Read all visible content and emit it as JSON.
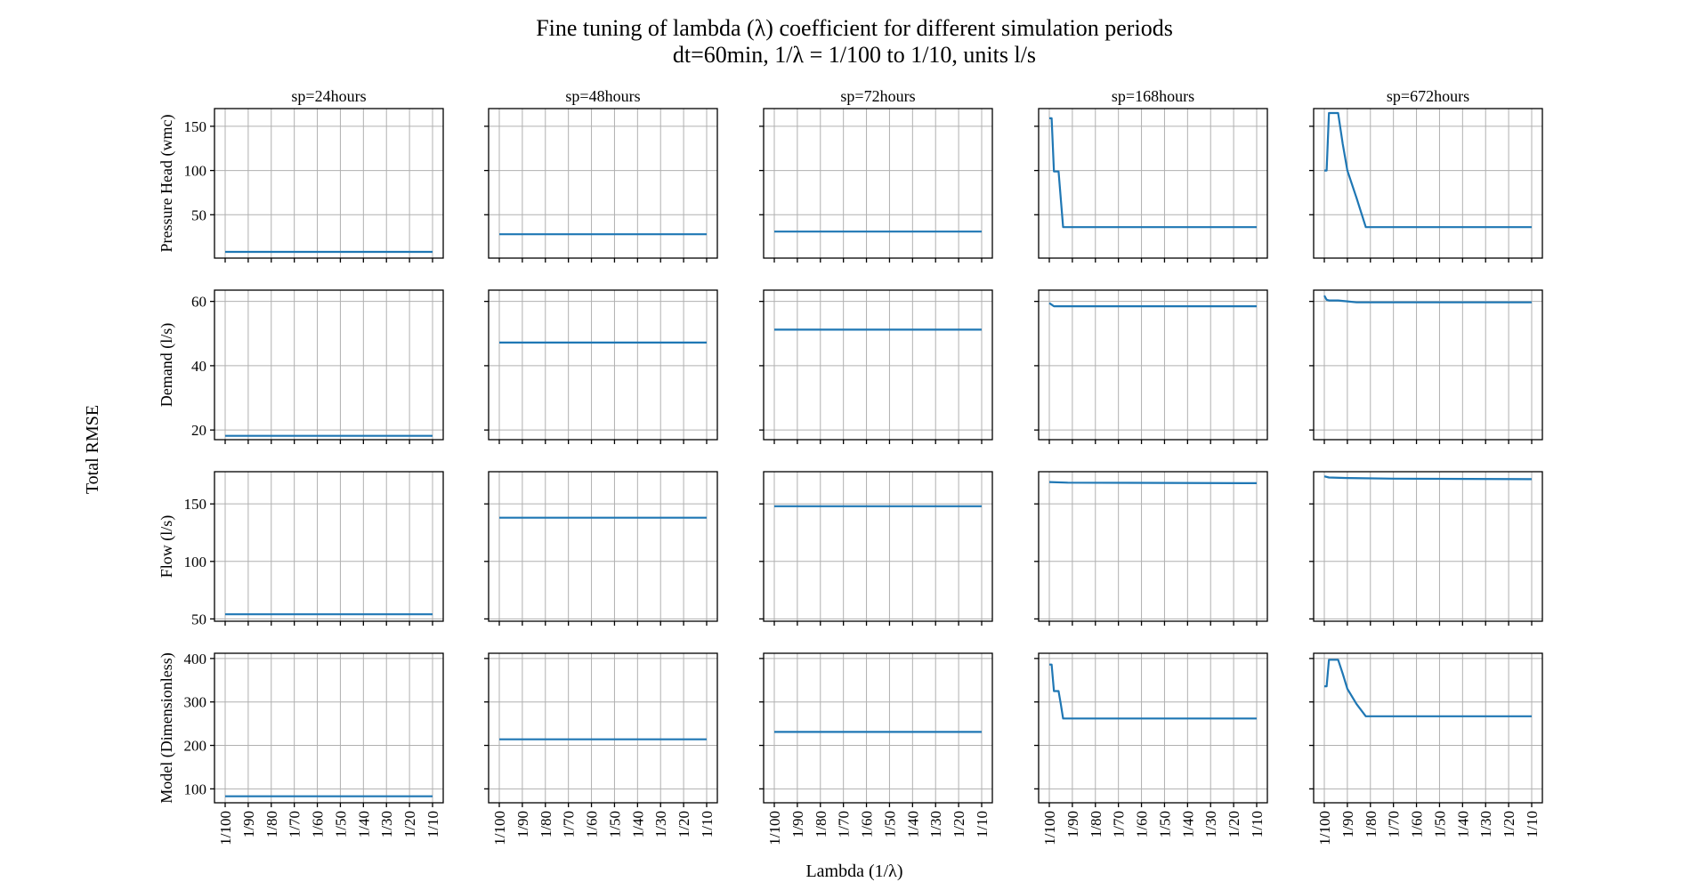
{
  "title_line1": "Fine tuning of lambda (λ) coefficient for different simulation periods",
  "title_line2": "dt=60min, 1/λ = 1/100 to 1/10, units l/s",
  "sup_ylabel": "Total RMSE",
  "sup_xlabel": "Lambda (1/λ)",
  "colors": {
    "series": "#1f77b4",
    "grid": "#b0b0b0"
  },
  "chart_data": {
    "type": "line",
    "x": [
      100,
      99,
      98,
      97,
      96,
      95,
      94,
      93,
      92,
      91,
      90,
      89,
      88,
      87,
      86,
      85,
      84,
      83,
      82,
      81,
      80,
      79,
      78,
      77,
      76,
      75,
      74,
      73,
      72,
      71,
      70,
      69,
      68,
      67,
      66,
      65,
      64,
      63,
      62,
      61,
      60,
      59,
      58,
      57,
      56,
      55,
      54,
      53,
      52,
      51,
      50,
      49,
      48,
      47,
      46,
      45,
      44,
      43,
      42,
      41,
      40,
      39,
      38,
      37,
      36,
      35,
      34,
      33,
      32,
      31,
      30,
      29,
      28,
      27,
      26,
      25,
      24,
      23,
      22,
      21,
      20,
      19,
      18,
      17,
      16,
      15,
      14,
      13,
      12,
      11,
      10
    ],
    "x_meaning": "lambda denominator d, where 1/λ = 1/d",
    "xlabel": "Lambda (1/λ)",
    "xticks": [
      "1/100",
      "1/90",
      "1/80",
      "1/70",
      "1/60",
      "1/50",
      "1/40",
      "1/30",
      "1/20",
      "1/10"
    ],
    "columns": [
      "sp=24hours",
      "sp=48hours",
      "sp=72hours",
      "sp=168hours",
      "sp=672hours"
    ],
    "rows": [
      {
        "ylabel": "Pressure Head (wmc)",
        "yticks": [
          50,
          100,
          150
        ],
        "ylim": [
          1,
          170
        ],
        "series": [
          {
            "column": "sp=24hours",
            "points": [
              [
                100,
                8
              ],
              [
                10,
                8
              ]
            ]
          },
          {
            "column": "sp=48hours",
            "points": [
              [
                100,
                28
              ],
              [
                10,
                28
              ]
            ]
          },
          {
            "column": "sp=72hours",
            "points": [
              [
                100,
                31
              ],
              [
                10,
                31
              ]
            ]
          },
          {
            "column": "sp=168hours",
            "points": [
              [
                100,
                159
              ],
              [
                99,
                159
              ],
              [
                98,
                99
              ],
              [
                97,
                99
              ],
              [
                96,
                99
              ],
              [
                95,
                68
              ],
              [
                94,
                36
              ],
              [
                10,
                36
              ]
            ]
          },
          {
            "column": "sp=672hours",
            "points": [
              [
                100,
                100
              ],
              [
                99,
                100
              ],
              [
                98,
                165
              ],
              [
                97,
                165
              ],
              [
                96,
                165
              ],
              [
                95,
                165
              ],
              [
                94,
                165
              ],
              [
                92,
                130
              ],
              [
                90,
                100
              ],
              [
                86,
                69
              ],
              [
                82,
                36
              ],
              [
                10,
                36
              ]
            ]
          }
        ]
      },
      {
        "ylabel": "Demand (l/s)",
        "yticks": [
          20,
          40,
          60
        ],
        "ylim": [
          17,
          63.5
        ],
        "series": [
          {
            "column": "sp=24hours",
            "points": [
              [
                100,
                18.2
              ],
              [
                10,
                18.2
              ]
            ]
          },
          {
            "column": "sp=48hours",
            "points": [
              [
                100,
                47.2
              ],
              [
                10,
                47.2
              ]
            ]
          },
          {
            "column": "sp=72hours",
            "points": [
              [
                100,
                51.2
              ],
              [
                10,
                51.2
              ]
            ]
          },
          {
            "column": "sp=168hours",
            "points": [
              [
                100,
                59.5
              ],
              [
                99,
                59
              ],
              [
                98,
                58.5
              ],
              [
                10,
                58.5
              ]
            ]
          },
          {
            "column": "sp=672hours",
            "points": [
              [
                100,
                61.8
              ],
              [
                99,
                60.5
              ],
              [
                98,
                60.3
              ],
              [
                94,
                60.3
              ],
              [
                90,
                60
              ],
              [
                86,
                59.7
              ],
              [
                10,
                59.7
              ]
            ]
          }
        ]
      },
      {
        "ylabel": "Flow (l/s)",
        "yticks": [
          50,
          100,
          150
        ],
        "ylim": [
          48,
          178
        ],
        "series": [
          {
            "column": "sp=24hours",
            "points": [
              [
                100,
                54
              ],
              [
                10,
                54
              ]
            ]
          },
          {
            "column": "sp=48hours",
            "points": [
              [
                100,
                138
              ],
              [
                10,
                138
              ]
            ]
          },
          {
            "column": "sp=72hours",
            "points": [
              [
                100,
                148
              ],
              [
                10,
                148
              ]
            ]
          },
          {
            "column": "sp=168hours",
            "points": [
              [
                100,
                169
              ],
              [
                92,
                168.5
              ],
              [
                10,
                168
              ]
            ]
          },
          {
            "column": "sp=672hours",
            "points": [
              [
                100,
                174
              ],
              [
                98,
                173
              ],
              [
                90,
                172.5
              ],
              [
                70,
                172
              ],
              [
                10,
                171.5
              ]
            ]
          }
        ]
      },
      {
        "ylabel": "Model (Dimensionless)",
        "yticks": [
          100,
          200,
          300,
          400
        ],
        "ylim": [
          68,
          412
        ],
        "series": [
          {
            "column": "sp=24hours",
            "points": [
              [
                100,
                83
              ],
              [
                10,
                83
              ]
            ]
          },
          {
            "column": "sp=48hours",
            "points": [
              [
                100,
                214
              ],
              [
                10,
                214
              ]
            ]
          },
          {
            "column": "sp=72hours",
            "points": [
              [
                100,
                231
              ],
              [
                10,
                231
              ]
            ]
          },
          {
            "column": "sp=168hours",
            "points": [
              [
                100,
                386
              ],
              [
                99,
                386
              ],
              [
                98,
                325
              ],
              [
                97,
                325
              ],
              [
                96,
                325
              ],
              [
                95,
                295
              ],
              [
                94,
                262
              ],
              [
                10,
                262
              ]
            ]
          },
          {
            "column": "sp=672hours",
            "points": [
              [
                100,
                336
              ],
              [
                99,
                336
              ],
              [
                98,
                397
              ],
              [
                97,
                397
              ],
              [
                96,
                397
              ],
              [
                95,
                397
              ],
              [
                94,
                397
              ],
              [
                92,
                365
              ],
              [
                90,
                330
              ],
              [
                86,
                295
              ],
              [
                82,
                267
              ],
              [
                10,
                267
              ]
            ]
          }
        ]
      }
    ]
  }
}
